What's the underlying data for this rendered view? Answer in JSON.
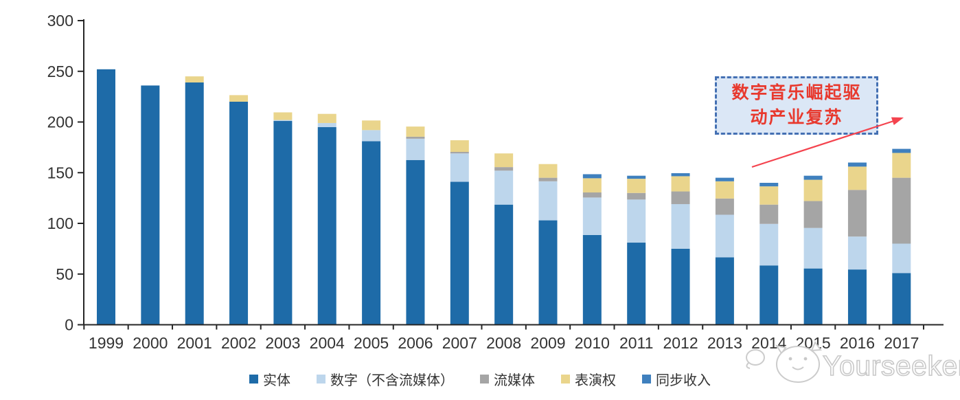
{
  "chart_data": {
    "type": "bar",
    "stacked": true,
    "title": "",
    "xlabel": "",
    "ylabel": "",
    "categories": [
      "1999",
      "2000",
      "2001",
      "2002",
      "2003",
      "2004",
      "2005",
      "2006",
      "2007",
      "2008",
      "2009",
      "2010",
      "2011",
      "2012",
      "2013",
      "2014",
      "2015",
      "2016",
      "2017"
    ],
    "series": [
      {
        "name": "实体",
        "color": "#1E6BA8",
        "values": [
          252,
          236,
          239,
          220,
          201,
          195,
          181,
          162.5,
          141,
          118.5,
          103,
          88.5,
          81,
          75,
          66.5,
          58.5,
          55.5,
          54.5,
          51
        ]
      },
      {
        "name": "数字（不含流媒体）",
        "color": "#BDD6EC",
        "values": [
          0,
          0,
          0,
          0,
          1,
          4,
          11,
          21,
          28,
          33.5,
          38.5,
          37,
          42.5,
          44,
          42,
          41,
          40,
          32.5,
          29
        ]
      },
      {
        "name": "流媒体",
        "color": "#A5A5A5",
        "values": [
          0,
          0,
          0,
          0,
          0,
          0,
          0,
          2,
          1.5,
          3.5,
          3.5,
          5,
          6.5,
          12.5,
          16,
          19,
          26.5,
          46,
          65
        ]
      },
      {
        "name": "表演权",
        "color": "#EAD58C",
        "values": [
          0,
          0,
          6,
          6.5,
          7.5,
          9,
          9.5,
          10,
          11.5,
          13.5,
          13.5,
          14,
          14,
          15,
          17,
          18,
          21,
          23,
          24.5
        ]
      },
      {
        "name": "同步收入",
        "color": "#3F80BE",
        "values": [
          0,
          0,
          0,
          0,
          0,
          0,
          0,
          0,
          0,
          0,
          0,
          4,
          3,
          3,
          3.5,
          3.5,
          4,
          4,
          4
        ]
      }
    ],
    "ylim": [
      0,
      300
    ],
    "y_ticks": [
      0,
      50,
      100,
      150,
      200,
      250,
      300
    ],
    "grid": false,
    "legend_position": "bottom"
  },
  "annotation": {
    "line1": "数字音乐崛起驱",
    "line2": "动产业复苏",
    "box_fill": "#DBE7F6",
    "box_border": "#4470B3",
    "text_color": "#E8392E",
    "arrow_color": "#F4434E"
  },
  "watermark": {
    "text": "Yourseeker",
    "logo": "cat-face-doodle",
    "color": "#CCCCCC"
  },
  "axes": {
    "line_color": "#262626",
    "tick_label_color": "#333333"
  }
}
